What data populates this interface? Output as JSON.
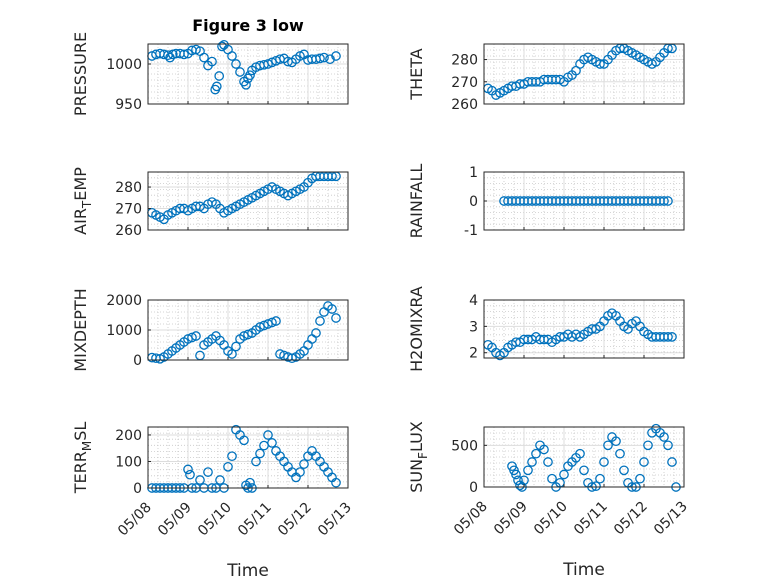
{
  "chart_data": [
    {
      "type": "scatter",
      "title": "Figure 3 low",
      "ylabel": "PRESSURE",
      "ylim": [
        950,
        1025
      ],
      "yticks": [
        "950",
        "1000"
      ],
      "ytick_values": [
        950,
        1000
      ],
      "x": [
        0.1,
        0.2,
        0.3,
        0.4,
        0.5,
        0.55,
        0.62,
        0.7,
        0.8,
        0.9,
        1.0,
        1.1,
        1.2,
        1.3,
        1.4,
        1.5,
        1.6,
        1.68,
        1.72,
        1.78,
        1.85,
        1.9,
        2.0,
        2.1,
        2.2,
        2.3,
        2.4,
        2.45,
        2.5,
        2.55,
        2.6,
        2.7,
        2.8,
        2.9,
        3.0,
        3.1,
        3.2,
        3.3,
        3.4,
        3.5,
        3.6,
        3.7,
        3.8,
        3.9,
        4.0,
        4.1,
        4.2,
        4.3,
        4.4,
        4.55,
        4.7
      ],
      "y": [
        1010,
        1012,
        1013,
        1012,
        1011,
        1008,
        1012,
        1013,
        1013,
        1012,
        1013,
        1017,
        1018,
        1016,
        1008,
        998,
        1003,
        968,
        972,
        985,
        1022,
        1024,
        1018,
        1010,
        1000,
        990,
        978,
        974,
        982,
        986,
        992,
        996,
        998,
        999,
        1000,
        1002,
        1004,
        1006,
        1007,
        1003,
        1002,
        1006,
        1010,
        1012,
        1005,
        1006,
        1006,
        1007,
        1008,
        1006,
        1010
      ]
    },
    {
      "type": "scatter",
      "ylabel": "THETA",
      "ylim": [
        260,
        287
      ],
      "yticks": [
        "260",
        "270",
        "280"
      ],
      "ytick_values": [
        260,
        270,
        280
      ],
      "x": [
        0.1,
        0.2,
        0.3,
        0.4,
        0.5,
        0.6,
        0.7,
        0.8,
        0.9,
        1.0,
        1.1,
        1.2,
        1.3,
        1.4,
        1.5,
        1.6,
        1.7,
        1.8,
        1.9,
        2.0,
        2.1,
        2.2,
        2.3,
        2.4,
        2.5,
        2.6,
        2.7,
        2.8,
        2.9,
        3.0,
        3.1,
        3.2,
        3.3,
        3.4,
        3.5,
        3.6,
        3.7,
        3.8,
        3.9,
        4.0,
        4.1,
        4.2,
        4.3,
        4.4,
        4.5,
        4.6,
        4.7
      ],
      "y": [
        267,
        266,
        264,
        265,
        266,
        267,
        268,
        268,
        269,
        269,
        270,
        270,
        270,
        270,
        271,
        271,
        271,
        271,
        271,
        270,
        272,
        273,
        275,
        278,
        280,
        281,
        280,
        279,
        278,
        278,
        280,
        282,
        284,
        285,
        285,
        284,
        283,
        282,
        281,
        280,
        279,
        278,
        279,
        281,
        283,
        285,
        285
      ]
    },
    {
      "type": "scatter",
      "ylabel": "AIR_TEMP",
      "ylim": [
        260,
        287
      ],
      "yticks": [
        "260",
        "270",
        "280"
      ],
      "ytick_values": [
        260,
        270,
        280
      ],
      "x": [
        0.1,
        0.2,
        0.3,
        0.4,
        0.5,
        0.6,
        0.7,
        0.8,
        0.9,
        1.0,
        1.1,
        1.2,
        1.3,
        1.4,
        1.5,
        1.6,
        1.7,
        1.8,
        1.9,
        2.0,
        2.1,
        2.2,
        2.3,
        2.4,
        2.5,
        2.6,
        2.7,
        2.8,
        2.9,
        3.0,
        3.1,
        3.2,
        3.3,
        3.4,
        3.5,
        3.6,
        3.7,
        3.8,
        3.9,
        4.0,
        4.1,
        4.2,
        4.3,
        4.4,
        4.5,
        4.6,
        4.7
      ],
      "y": [
        268,
        267,
        266,
        265,
        267,
        268,
        269,
        270,
        270,
        269,
        270,
        271,
        271,
        270,
        272,
        273,
        272,
        270,
        268,
        269,
        270,
        271,
        272,
        273,
        274,
        275,
        276,
        277,
        278,
        279,
        280,
        279,
        278,
        277,
        276,
        277,
        278,
        279,
        280,
        282,
        284,
        285,
        285,
        285,
        285,
        285,
        285
      ]
    },
    {
      "type": "scatter",
      "ylabel": "RAINFALL",
      "ylim": [
        -1,
        1
      ],
      "yticks": [
        "-1",
        "0",
        "1"
      ],
      "ytick_values": [
        -1,
        0,
        1
      ],
      "x": [
        0.5,
        0.6,
        0.7,
        0.8,
        0.9,
        1.0,
        1.1,
        1.2,
        1.3,
        1.4,
        1.5,
        1.6,
        1.7,
        1.8,
        1.9,
        2.0,
        2.1,
        2.2,
        2.3,
        2.4,
        2.5,
        2.6,
        2.7,
        2.8,
        2.9,
        3.0,
        3.1,
        3.2,
        3.3,
        3.4,
        3.5,
        3.6,
        3.7,
        3.8,
        3.9,
        4.0,
        4.1,
        4.2,
        4.3,
        4.4,
        4.5,
        4.6
      ],
      "y": [
        0,
        0,
        0,
        0,
        0,
        0,
        0,
        0,
        0,
        0,
        0,
        0,
        0,
        0,
        0,
        0,
        0,
        0,
        0,
        0,
        0,
        0,
        0,
        0,
        0,
        0,
        0,
        0,
        0,
        0,
        0,
        0,
        0,
        0,
        0,
        0,
        0,
        0,
        0,
        0,
        0,
        0
      ]
    },
    {
      "type": "scatter",
      "ylabel": "MIXDEPTH",
      "ylim": [
        0,
        2000
      ],
      "yticks": [
        "0",
        "1000",
        "2000"
      ],
      "ytick_values": [
        0,
        1000,
        2000
      ],
      "x": [
        0.1,
        0.2,
        0.3,
        0.4,
        0.5,
        0.6,
        0.7,
        0.8,
        0.9,
        1.0,
        1.1,
        1.2,
        1.3,
        1.4,
        1.5,
        1.6,
        1.7,
        1.8,
        1.9,
        2.0,
        2.1,
        2.2,
        2.3,
        2.4,
        2.5,
        2.6,
        2.7,
        2.8,
        2.9,
        3.0,
        3.1,
        3.2,
        3.3,
        3.4,
        3.5,
        3.6,
        3.7,
        3.8,
        3.9,
        4.0,
        4.1,
        4.2,
        4.3,
        4.4,
        4.5,
        4.6,
        4.7
      ],
      "y": [
        80,
        60,
        40,
        100,
        200,
        300,
        400,
        500,
        600,
        700,
        750,
        800,
        150,
        500,
        600,
        700,
        800,
        650,
        500,
        300,
        200,
        450,
        700,
        800,
        850,
        900,
        1000,
        1100,
        1150,
        1200,
        1250,
        1300,
        200,
        150,
        100,
        60,
        100,
        200,
        300,
        500,
        700,
        900,
        1300,
        1600,
        1800,
        1700,
        1400
      ]
    },
    {
      "type": "scatter",
      "ylabel": "H2OMIXRA",
      "ylim": [
        1.8,
        4
      ],
      "yticks": [
        "2",
        "3",
        "4"
      ],
      "ytick_values": [
        2,
        3,
        4
      ],
      "x": [
        0.1,
        0.2,
        0.3,
        0.4,
        0.5,
        0.6,
        0.7,
        0.8,
        0.9,
        1.0,
        1.1,
        1.2,
        1.3,
        1.4,
        1.5,
        1.6,
        1.7,
        1.8,
        1.9,
        2.0,
        2.1,
        2.2,
        2.3,
        2.4,
        2.5,
        2.6,
        2.7,
        2.8,
        2.9,
        3.0,
        3.1,
        3.2,
        3.3,
        3.4,
        3.5,
        3.6,
        3.7,
        3.8,
        3.9,
        4.0,
        4.1,
        4.2,
        4.3,
        4.4,
        4.5,
        4.6,
        4.7
      ],
      "y": [
        2.3,
        2.2,
        2.0,
        1.9,
        2.0,
        2.2,
        2.3,
        2.4,
        2.4,
        2.5,
        2.5,
        2.5,
        2.6,
        2.5,
        2.5,
        2.5,
        2.4,
        2.5,
        2.6,
        2.6,
        2.7,
        2.6,
        2.7,
        2.6,
        2.7,
        2.8,
        2.9,
        2.9,
        3.0,
        3.2,
        3.4,
        3.5,
        3.4,
        3.2,
        3.0,
        2.9,
        3.1,
        3.2,
        3.0,
        2.8,
        2.7,
        2.6,
        2.6,
        2.6,
        2.6,
        2.6,
        2.6
      ]
    },
    {
      "type": "scatter",
      "ylabel": "TERR_MSL",
      "xlabel": "Time",
      "ylim": [
        0,
        230
      ],
      "yticks": [
        "0",
        "100",
        "200"
      ],
      "ytick_values": [
        0,
        100,
        200
      ],
      "x_tick_labels": [
        "05/08",
        "05/09",
        "05/10",
        "05/11",
        "05/12",
        "05/13"
      ],
      "x": [
        0.1,
        0.2,
        0.3,
        0.4,
        0.5,
        0.6,
        0.7,
        0.8,
        0.9,
        1.0,
        1.05,
        1.1,
        1.2,
        1.3,
        1.4,
        1.5,
        1.6,
        1.7,
        1.8,
        1.9,
        2.0,
        2.1,
        2.2,
        2.3,
        2.4,
        2.45,
        2.5,
        2.55,
        2.6,
        2.7,
        2.8,
        2.9,
        3.0,
        3.1,
        3.2,
        3.3,
        3.4,
        3.5,
        3.6,
        3.7,
        3.8,
        3.9,
        4.0,
        4.1,
        4.2,
        4.3,
        4.4,
        4.5,
        4.6,
        4.7
      ],
      "y": [
        0,
        0,
        0,
        0,
        0,
        0,
        0,
        0,
        0,
        70,
        50,
        0,
        0,
        30,
        0,
        60,
        0,
        0,
        30,
        0,
        80,
        120,
        220,
        200,
        180,
        10,
        0,
        20,
        0,
        100,
        130,
        160,
        200,
        170,
        140,
        120,
        100,
        80,
        60,
        40,
        60,
        90,
        120,
        140,
        120,
        100,
        80,
        60,
        40,
        20
      ]
    },
    {
      "type": "scatter",
      "ylabel": "SUN_FLUX",
      "xlabel": "Time",
      "ylim": [
        0,
        720
      ],
      "yticks": [
        "0",
        "500"
      ],
      "ytick_values": [
        0,
        500
      ],
      "x_tick_labels": [
        "05/08",
        "05/09",
        "05/10",
        "05/11",
        "05/12",
        "05/13"
      ],
      "x": [
        0.7,
        0.75,
        0.8,
        0.85,
        0.9,
        0.95,
        1.0,
        1.1,
        1.2,
        1.3,
        1.4,
        1.5,
        1.6,
        1.7,
        1.8,
        1.9,
        2.0,
        2.1,
        2.2,
        2.3,
        2.4,
        2.5,
        2.6,
        2.7,
        2.8,
        2.9,
        3.0,
        3.1,
        3.2,
        3.3,
        3.4,
        3.5,
        3.6,
        3.7,
        3.8,
        3.9,
        4.0,
        4.1,
        4.2,
        4.3,
        4.4,
        4.5,
        4.6,
        4.7,
        4.8
      ],
      "y": [
        250,
        200,
        150,
        80,
        20,
        0,
        80,
        200,
        300,
        400,
        500,
        450,
        300,
        100,
        0,
        50,
        150,
        250,
        300,
        350,
        400,
        200,
        50,
        0,
        10,
        100,
        300,
        500,
        600,
        550,
        400,
        200,
        50,
        0,
        0,
        100,
        300,
        500,
        650,
        700,
        650,
        600,
        500,
        300,
        0
      ]
    }
  ]
}
